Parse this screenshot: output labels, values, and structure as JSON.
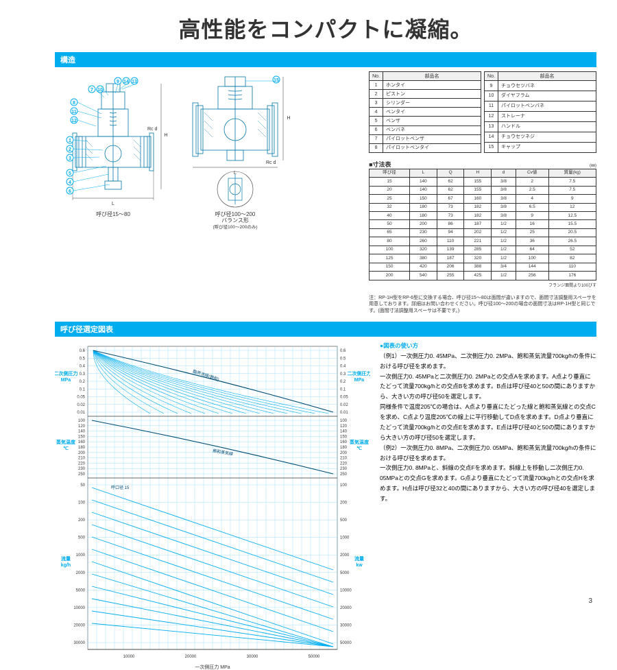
{
  "title": "高性能をコンパクトに凝縮。",
  "section1": "構造",
  "section2": "呼び径選定図表",
  "diagram1_caption": "呼び径15～80",
  "diagram2_caption": "呼び径100～200",
  "diagram3_caption": "バランス形",
  "diagram3_sub": "(呼び径100～200のみ)",
  "parts_header_no": "No.",
  "parts_header_name": "部品名",
  "parts_left": [
    {
      "no": "1",
      "name": "ホンタイ"
    },
    {
      "no": "2",
      "name": "ピストン"
    },
    {
      "no": "3",
      "name": "シリンダー"
    },
    {
      "no": "4",
      "name": "ベンタイ"
    },
    {
      "no": "5",
      "name": "ベンザ"
    },
    {
      "no": "6",
      "name": "ベンバネ"
    },
    {
      "no": "7",
      "name": "パイロットベンザ"
    },
    {
      "no": "8",
      "name": "パイロットベンタイ"
    }
  ],
  "parts_right": [
    {
      "no": "9",
      "name": "チョウセツバネ"
    },
    {
      "no": "10",
      "name": "ダイヤフラム"
    },
    {
      "no": "11",
      "name": "パイロットベンバネ"
    },
    {
      "no": "12",
      "name": "ストレーナ"
    },
    {
      "no": "13",
      "name": "ハンドル"
    },
    {
      "no": "14",
      "name": "チョウセツネジ"
    },
    {
      "no": "15",
      "name": "キャップ"
    }
  ],
  "dim_title": "■寸法表",
  "dim_unit": "(㎜)",
  "dim_headers": [
    "呼び径",
    "L",
    "Q",
    "H",
    "d",
    "Cv値",
    "質量(kg)"
  ],
  "dim_rows": [
    [
      "15",
      "140",
      "62",
      "155",
      "3/8",
      "2",
      "7.5"
    ],
    [
      "20",
      "140",
      "62",
      "155",
      "3/8",
      "2.5",
      "7.5"
    ],
    [
      "25",
      "150",
      "67",
      "160",
      "3/8",
      "4",
      "9"
    ],
    [
      "32",
      "180",
      "73",
      "182",
      "3/8",
      "6.5",
      "12"
    ],
    [
      "40",
      "180",
      "73",
      "182",
      "3/8",
      "9",
      "12.5"
    ],
    [
      "50",
      "200",
      "86",
      "187",
      "1/2",
      "16",
      "15.5"
    ],
    [
      "65",
      "230",
      "94",
      "202",
      "1/2",
      "25",
      "20.5"
    ],
    [
      "80",
      "260",
      "110",
      "221",
      "1/2",
      "36",
      "26.5"
    ],
    [
      "100",
      "320",
      "139",
      "285",
      "1/2",
      "64",
      "52"
    ],
    [
      "125",
      "380",
      "187",
      "320",
      "1/2",
      "100",
      "82"
    ],
    [
      "150",
      "420",
      "206",
      "388",
      "3/4",
      "144",
      "110"
    ],
    [
      "200",
      "540",
      "255",
      "425",
      "1/2",
      "256",
      "176"
    ]
  ],
  "dim_note": "フランジ面間より100びす",
  "footnote": "注：RP-1H型をRP-6型に交換する場合、呼び径15～80は面間が違いますので、面間寸法調整用スペーサを用意しております。詳細はお問い合わせください。呼び径100～200の場合の面間寸法はRP-1H型と同じです。(面間寸法調整用スペーサは不要です。)",
  "usage_title": "●図表の使い方",
  "usage_body": "（例1）一次側圧力0. 45MPa、二次側圧力0. 2MPa、飽和蒸気流量700kg/hの条件における呼び径を求めます。\n一次側圧力0. 45MPaと二次側圧力0. 2MPaとの交点Aを求めます。A点より垂直にたどって流量700kg/hとの交点Bを求めます。B点は呼び径40と50の間にありますから、大きい方の呼び径50を選定します。\n同様条件で温度205℃の場合は、A点より垂直にたどった線と飽和蒸気線との交点Cを求め、C点より温度205℃の線上に平行移動してD点を求めます。D点より垂直にたどって流量700kg/hとの交点Eを求めます。E点は呼び径40と50の間にありますから大きい方の呼び径50を選定します。\n（例2）一次側圧力0. 8MPa、二次側圧力0. 05MPa、飽和蒸気流量700kg/hの条件における呼び径を求めます。\n一次側圧力0. 8MPaと、斜線の交点Fを求めます。斜線上を移動し二次側圧力0. 05MPaとの交点Gを求めます。G点より垂直にたどって流量700kg/hとの交点Hを求めます。H点は呼び径32と40の間にありますから、大きい方の呼び径40を選定します。",
  "axis_left_top": "二次側圧力\nMPa",
  "axis_left_mid": "蒸気温度\n℃",
  "axis_left_bot": "流量\nkg/h",
  "axis_right_top": "二次側圧力\nMPa",
  "axis_right_mid": "蒸気温度\n℃",
  "axis_right_bot": "流量\nkw",
  "axis_bottom": "一次側圧力 MPa",
  "chart_colors": {
    "grid": "#00adef",
    "grid_light": "#7dd6f5",
    "line_dark": "#004b73",
    "bg": "#ffffff"
  },
  "flow_ticks_left": [
    "50",
    "100",
    "200",
    "500",
    "1000",
    "2000",
    "5000",
    "10000",
    "20000",
    "30000"
  ],
  "flow_ticks_right": [
    "100",
    "200",
    "500",
    "1000",
    "2000",
    "5000",
    "10000",
    "20000",
    "30000",
    "50000"
  ],
  "temp_ticks": [
    "100",
    "120",
    "140",
    "150",
    "160",
    "180",
    "200",
    "210",
    "220",
    "230",
    "250"
  ],
  "press_ticks": [
    "0.6",
    "0.5",
    "0.4",
    "0.3",
    "0.2",
    "0.1",
    "0.05",
    "0.02",
    "0.01"
  ],
  "page": "3"
}
